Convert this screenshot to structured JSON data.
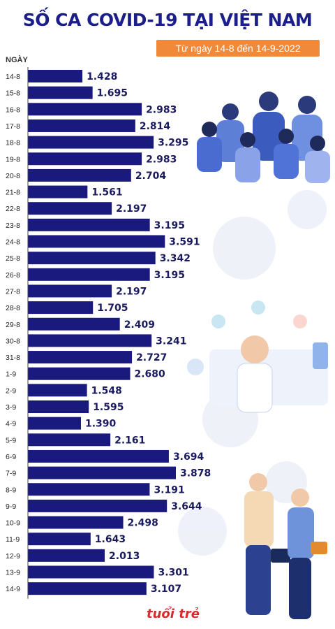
{
  "header": {
    "title": "SỐ CA COVID-19 TẠI VIỆT NAM",
    "subtitle": "Từ ngày 14-8 đến 14-9-2022",
    "ylabel": "NGÀY"
  },
  "brand": {
    "name": "tuổi trẻ"
  },
  "colors": {
    "bar": "#1a1a7e",
    "accent": "#f08a3a",
    "title": "#1c1f8a"
  },
  "chart_data": {
    "type": "bar",
    "orientation": "horizontal",
    "title": "SỐ CA COVID-19 TẠI VIỆT NAM",
    "subtitle": "Từ ngày 14-8 đến 14-9-2022",
    "ylabel": "NGÀY",
    "xlabel": "",
    "categories": [
      "14-8",
      "15-8",
      "16-8",
      "17-8",
      "18-8",
      "19-8",
      "20-8",
      "21-8",
      "22-8",
      "23-8",
      "24-8",
      "25-8",
      "26-8",
      "27-8",
      "28-8",
      "29-8",
      "30-8",
      "31-8",
      "1-9",
      "2-9",
      "3-9",
      "4-9",
      "5-9",
      "6-9",
      "7-9",
      "8-9",
      "9-9",
      "10-9",
      "11-9",
      "12-9",
      "13-9",
      "14-9"
    ],
    "values": [
      1428,
      1695,
      2983,
      2814,
      3295,
      2983,
      2704,
      1561,
      2197,
      3195,
      3591,
      3342,
      3195,
      2197,
      1705,
      2409,
      3241,
      2727,
      2680,
      1548,
      1595,
      1390,
      2161,
      3694,
      3878,
      3191,
      3644,
      2498,
      1643,
      2013,
      3301,
      3107
    ],
    "value_labels": [
      "1.428",
      "1.695",
      "2.983",
      "2.814",
      "3.295",
      "2.983",
      "2.704",
      "1.561",
      "2.197",
      "3.195",
      "3.591",
      "3.342",
      "3.195",
      "2.197",
      "1.705",
      "2.409",
      "3.241",
      "2.727",
      "2.680",
      "1.548",
      "1.595",
      "1.390",
      "2.161",
      "3.694",
      "3.878",
      "3.191",
      "3.644",
      "2.498",
      "1.643",
      "2.013",
      "3.301",
      "3.107"
    ],
    "xlim": [
      0,
      3878
    ],
    "grid": false,
    "legend": "none"
  }
}
